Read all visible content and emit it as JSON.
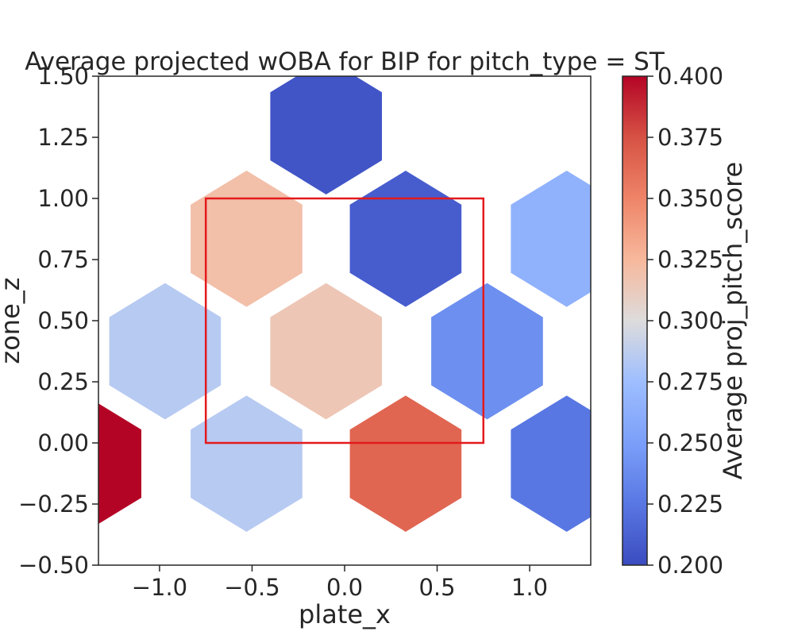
{
  "chart_data": {
    "type": "heatmap",
    "subtype": "hexbin",
    "title": "Average projected wOBA for BIP for pitch_type = ST",
    "xlabel": "plate_x",
    "ylabel": "zone_z",
    "xlim": [
      -1.33,
      1.33
    ],
    "ylim": [
      -0.5,
      1.5
    ],
    "xticks": [
      -1.0,
      -0.5,
      0.0,
      0.5,
      1.0
    ],
    "xtick_labels": [
      "−1.0",
      "−0.5",
      "0.0",
      "0.5",
      "1.0"
    ],
    "yticks": [
      -0.5,
      -0.25,
      0.0,
      0.25,
      0.5,
      0.75,
      1.0,
      1.25,
      1.5
    ],
    "ytick_labels": [
      "−0.50",
      "−0.25",
      "0.00",
      "0.25",
      "0.50",
      "0.75",
      "1.00",
      "1.25",
      "1.50"
    ],
    "hex_size": 0.6,
    "colormap": "coolwarm",
    "colorbar": {
      "label": "Average proj_pitch_score",
      "min": 0.2,
      "max": 0.4,
      "ticks": [
        0.2,
        0.225,
        0.25,
        0.275,
        0.3,
        0.325,
        0.35,
        0.375,
        0.4
      ],
      "tick_labels": [
        "0.200",
        "0.225",
        "0.250",
        "0.275",
        "0.300",
        "0.325",
        "0.350",
        "0.375",
        "0.400"
      ]
    },
    "cells": [
      {
        "x": -1.4,
        "y": -0.085,
        "value": 0.4
      },
      {
        "x": -0.53,
        "y": -0.085,
        "value": 0.285
      },
      {
        "x": 0.33,
        "y": -0.085,
        "value": 0.365
      },
      {
        "x": 1.2,
        "y": -0.085,
        "value": 0.225
      },
      {
        "x": -0.97,
        "y": 0.375,
        "value": 0.285
      },
      {
        "x": -0.1,
        "y": 0.375,
        "value": 0.315
      },
      {
        "x": 0.77,
        "y": 0.375,
        "value": 0.24
      },
      {
        "x": -0.53,
        "y": 0.835,
        "value": 0.32
      },
      {
        "x": 0.33,
        "y": 0.835,
        "value": 0.21
      },
      {
        "x": 1.2,
        "y": 0.835,
        "value": 0.265
      },
      {
        "x": -0.1,
        "y": 1.295,
        "value": 0.205
      }
    ],
    "strike_zone": {
      "x0": -0.75,
      "x1": 0.75,
      "y0": 0.0,
      "y1": 1.0,
      "color": "#e31a1c"
    },
    "grid": false
  }
}
